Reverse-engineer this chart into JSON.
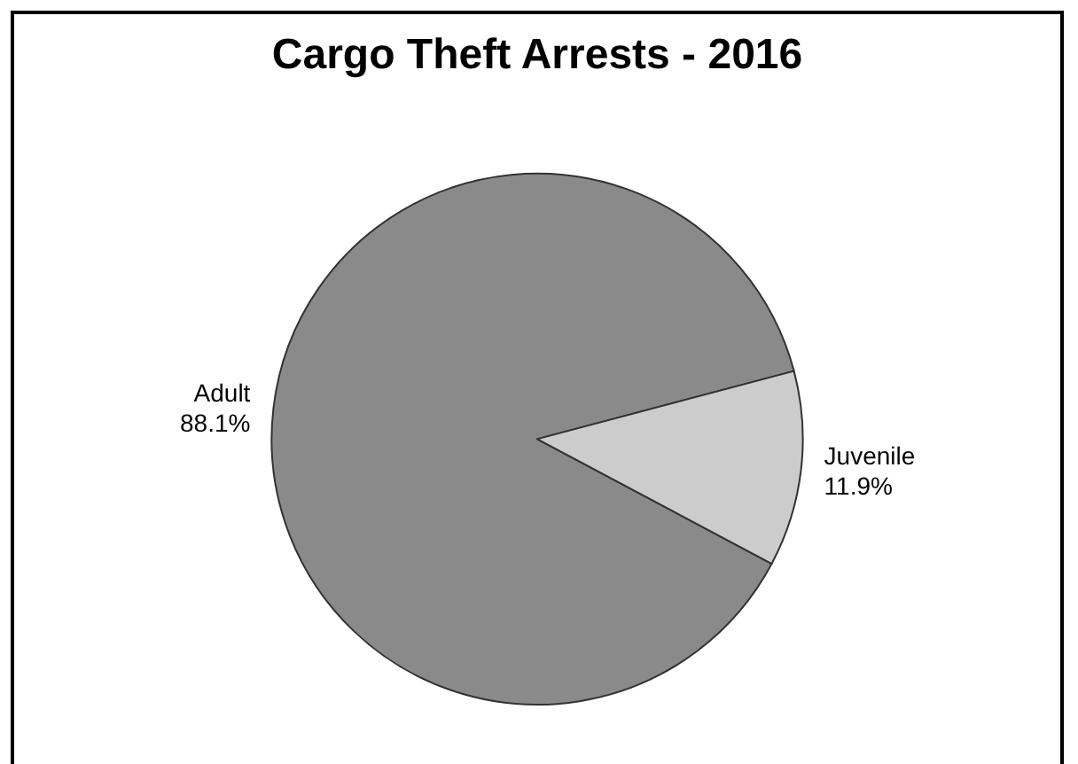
{
  "chart_data": {
    "type": "pie",
    "title": "Cargo Theft Arrests - 2016",
    "categories": [
      "Adult",
      "Juvenile"
    ],
    "values": [
      88.1,
      11.9
    ],
    "value_labels": [
      "88.1%",
      "11.9%"
    ],
    "colors": [
      "#8a8a8a",
      "#cccccc"
    ],
    "legend": false
  }
}
